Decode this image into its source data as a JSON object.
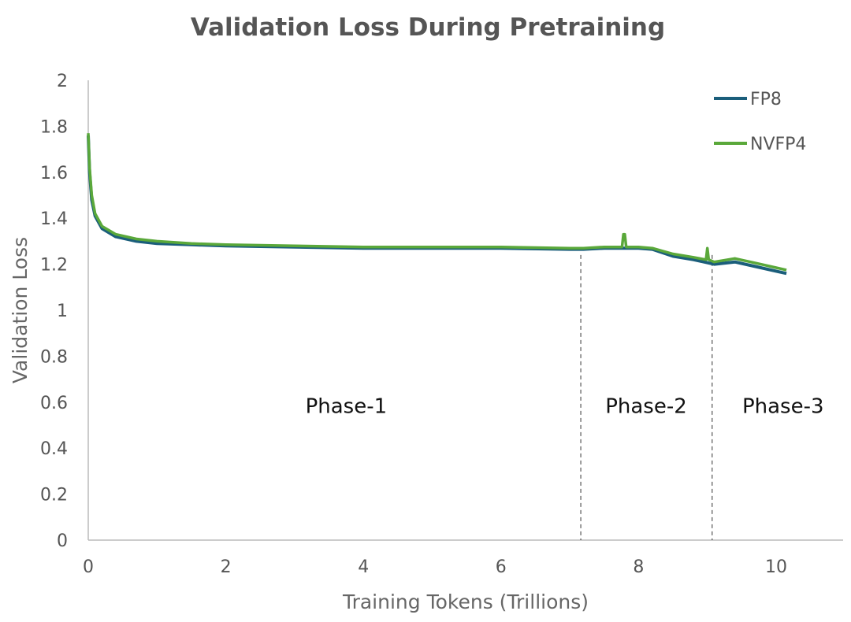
{
  "chart_data": {
    "type": "line",
    "title": "Validation Loss During Pretraining",
    "xlabel": "Training Tokens (Trillions)",
    "ylabel": "Validation Loss",
    "xlim": [
      0,
      11
    ],
    "ylim": [
      0,
      2
    ],
    "xticks": [
      0,
      2,
      4,
      6,
      8,
      10
    ],
    "yticks": [
      0,
      0.2,
      0.4,
      0.6,
      0.8,
      1,
      1.2,
      1.4,
      1.6,
      1.8,
      2
    ],
    "grid": false,
    "legend_position": "top-right",
    "series": [
      {
        "name": "FP8",
        "color": "#1b5e7b",
        "x": [
          0,
          0.02,
          0.05,
          0.1,
          0.2,
          0.4,
          0.7,
          1,
          1.5,
          2,
          3,
          4,
          5,
          6,
          7,
          7.2,
          7.5,
          8,
          8.2,
          8.5,
          8.8,
          9.1,
          9.4,
          9.7,
          10,
          10.15
        ],
        "y": [
          1.76,
          1.6,
          1.48,
          1.41,
          1.355,
          1.32,
          1.3,
          1.29,
          1.285,
          1.28,
          1.275,
          1.27,
          1.27,
          1.27,
          1.265,
          1.265,
          1.27,
          1.27,
          1.265,
          1.235,
          1.22,
          1.2,
          1.21,
          1.19,
          1.17,
          1.16
        ]
      },
      {
        "name": "NVFP4",
        "color": "#5aa83a",
        "x": [
          0,
          0.02,
          0.05,
          0.1,
          0.2,
          0.4,
          0.7,
          1,
          1.5,
          2,
          3,
          4,
          5,
          6,
          7,
          7.2,
          7.5,
          7.76,
          7.78,
          7.8,
          7.82,
          8,
          8.2,
          8.5,
          8.8,
          8.98,
          9.0,
          9.02,
          9.1,
          9.4,
          9.7,
          10,
          10.15
        ],
        "y": [
          1.77,
          1.62,
          1.5,
          1.42,
          1.365,
          1.33,
          1.31,
          1.3,
          1.29,
          1.285,
          1.28,
          1.275,
          1.275,
          1.275,
          1.27,
          1.27,
          1.275,
          1.275,
          1.33,
          1.33,
          1.275,
          1.275,
          1.27,
          1.245,
          1.23,
          1.22,
          1.27,
          1.22,
          1.21,
          1.225,
          1.205,
          1.185,
          1.175
        ]
      }
    ],
    "phase_boundaries": [
      7.16,
      9.07
    ],
    "annotations": [
      {
        "text": "Phase-1",
        "x": 3.75,
        "y": 0.58
      },
      {
        "text": "Phase-2",
        "x": 8.11,
        "y": 0.58
      },
      {
        "text": "Phase-3",
        "x": 10.1,
        "y": 0.58
      }
    ]
  }
}
